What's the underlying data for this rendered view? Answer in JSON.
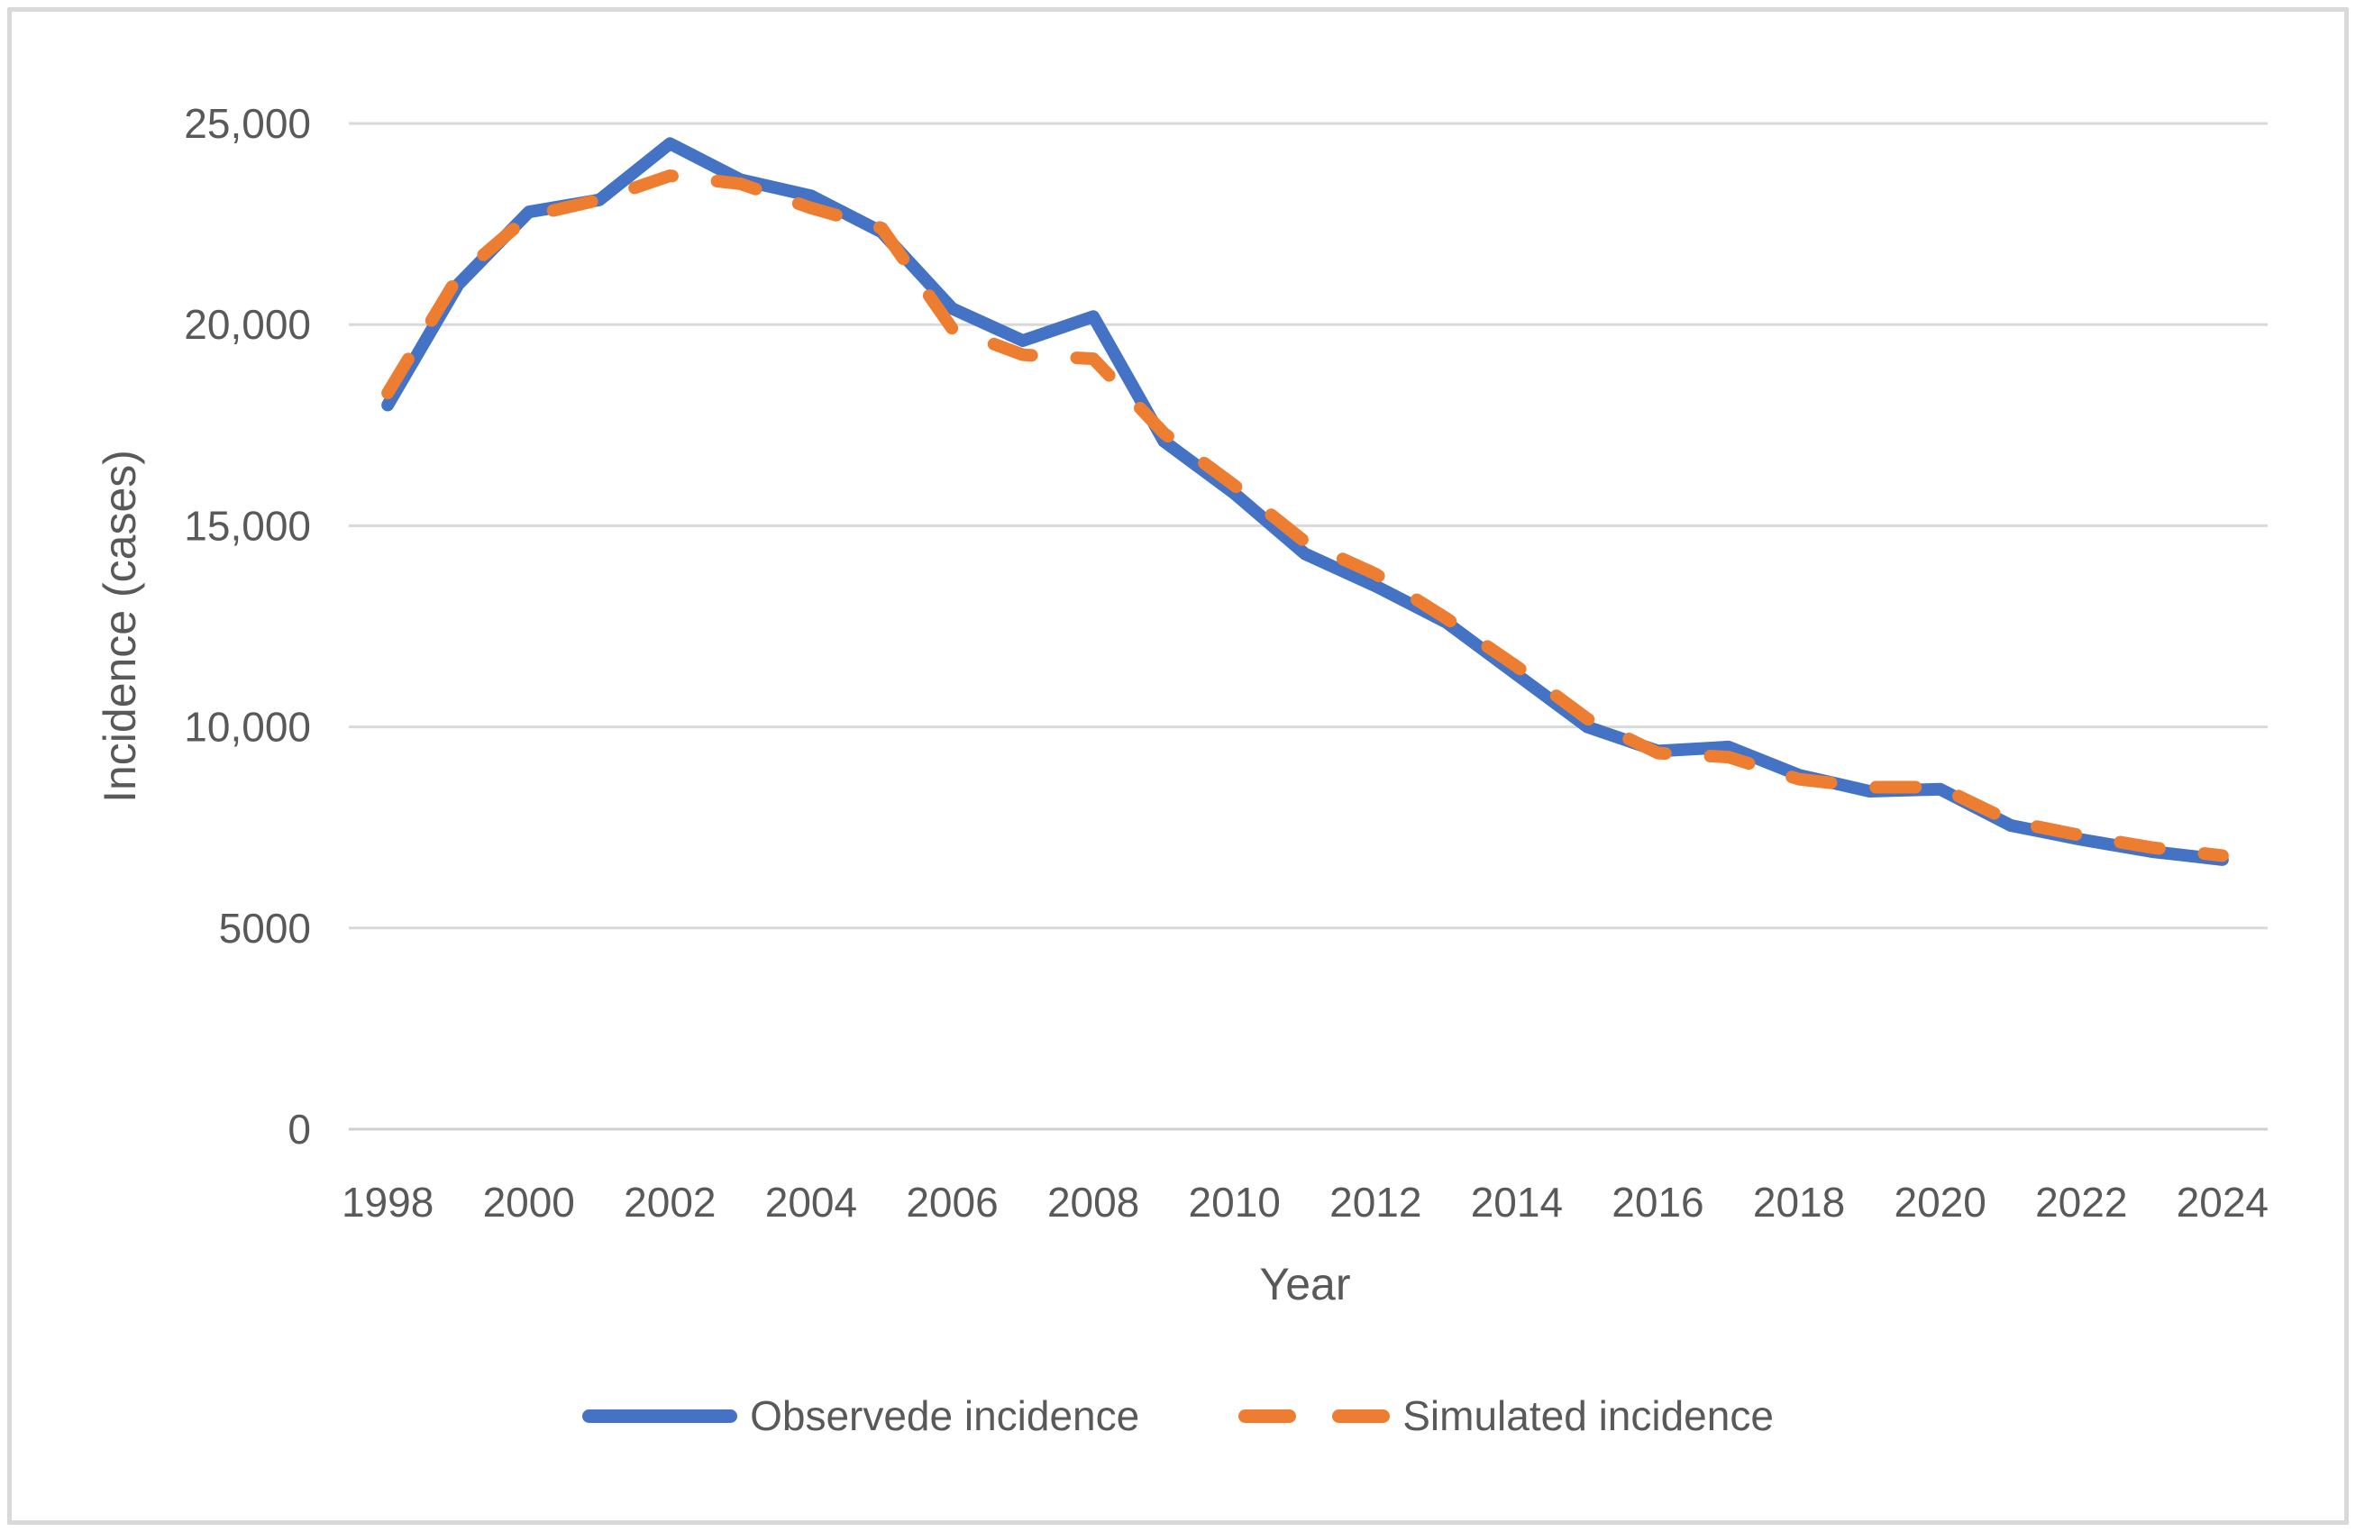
{
  "figure": {
    "background": "#ffffff",
    "frame_color": "#d9d9d9"
  },
  "chart_data": {
    "type": "line",
    "title": "",
    "xlabel": "Year",
    "ylabel": "Incidence (cases)",
    "x": [
      1998,
      1999,
      2000,
      2001,
      2002,
      2003,
      2004,
      2005,
      2006,
      2007,
      2008,
      2009,
      2010,
      2011,
      2012,
      2013,
      2014,
      2015,
      2016,
      2017,
      2018,
      2019,
      2020,
      2021,
      2022,
      2023,
      2024
    ],
    "x_tick_labels": [
      "1998",
      "2000",
      "2002",
      "2004",
      "2006",
      "2008",
      "2010",
      "2012",
      "2014",
      "2016",
      "2018",
      "2020",
      "2022",
      "2024"
    ],
    "y_ticks": [
      0,
      5000,
      10000,
      15000,
      20000,
      25000
    ],
    "y_tick_labels": [
      "0",
      "5000",
      "10,000",
      "15,000",
      "20,000",
      "25,000"
    ],
    "ylim": [
      0,
      25000
    ],
    "grid": "horizontal",
    "gridline_color": "#d9d9d9",
    "text_color": "#595959",
    "legend_position": "bottom",
    "series": [
      {
        "name": "Observede incidence",
        "color": "#4472c4",
        "style": "solid",
        "values": [
          18000,
          21000,
          22800,
          23100,
          24500,
          23600,
          23200,
          22300,
          20400,
          19600,
          20200,
          17100,
          15800,
          14300,
          13500,
          12600,
          11300,
          10000,
          9400,
          9500,
          8800,
          8400,
          8450,
          7550,
          7200,
          6900,
          6700
        ]
      },
      {
        "name": "Simulated incidence",
        "color": "#ed7d31",
        "style": "dashed",
        "values": [
          18300,
          21200,
          22700,
          23100,
          23700,
          23500,
          22900,
          22400,
          19900,
          19250,
          19150,
          17300,
          16000,
          14600,
          13800,
          12700,
          11500,
          10200,
          9350,
          9250,
          8700,
          8500,
          8500,
          7650,
          7300,
          7000,
          6800
        ]
      }
    ]
  }
}
